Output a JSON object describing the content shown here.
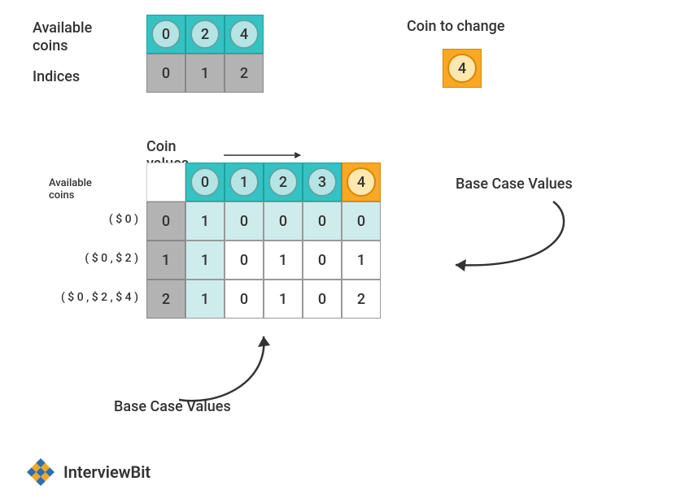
{
  "colors": {
    "teal": "#35c2c2",
    "teal_border": "#1f9f9f",
    "light_teal": "#cfecec",
    "gray": "#b3b3b3",
    "gray_border": "#888888",
    "orange": "#f9a825",
    "orange_border": "#d48806",
    "cream": "#ffe7b0",
    "circle_blue": "#b6e3e3",
    "circle_border": "#5aa7a7",
    "white": "#ffffff",
    "text": "#333333"
  },
  "top": {
    "available_label_l1": "Available",
    "available_label_l2": "coins",
    "indices_label": "Indices",
    "coins": [
      "0",
      "2",
      "4"
    ],
    "indices": [
      "0",
      "1",
      "2"
    ],
    "coin_to_change_label": "Coin to change",
    "coin_to_change_value": "4"
  },
  "mid": {
    "coin_values_label": "Coin values",
    "available_coins_label": "Available coins",
    "col_headers": [
      "0",
      "1",
      "2",
      "3",
      "4"
    ],
    "row_labels": [
      "( $ 0 )",
      "( $ 0 , $ 2 )",
      "( $ 0 , $ 2 , $ 4 )"
    ],
    "row_index_col": [
      "0",
      "1",
      "2"
    ],
    "data": [
      [
        "1",
        "0",
        "0",
        "0",
        "0"
      ],
      [
        "1",
        "0",
        "1",
        "0",
        "1"
      ],
      [
        "1",
        "0",
        "1",
        "0",
        "2"
      ]
    ],
    "highlight_row": 0,
    "highlight_col": 0,
    "last_header_special": true
  },
  "annotations": {
    "base_case_right": "Base Case Values",
    "base_case_bottom": "Base Case Values"
  },
  "logo_text": "InterviewBit",
  "sizes": {
    "top_cell": 48,
    "mid_cell": 48,
    "circle": 36,
    "coin_change_cell": 48,
    "label_font": 18,
    "small_label_font": 13
  }
}
